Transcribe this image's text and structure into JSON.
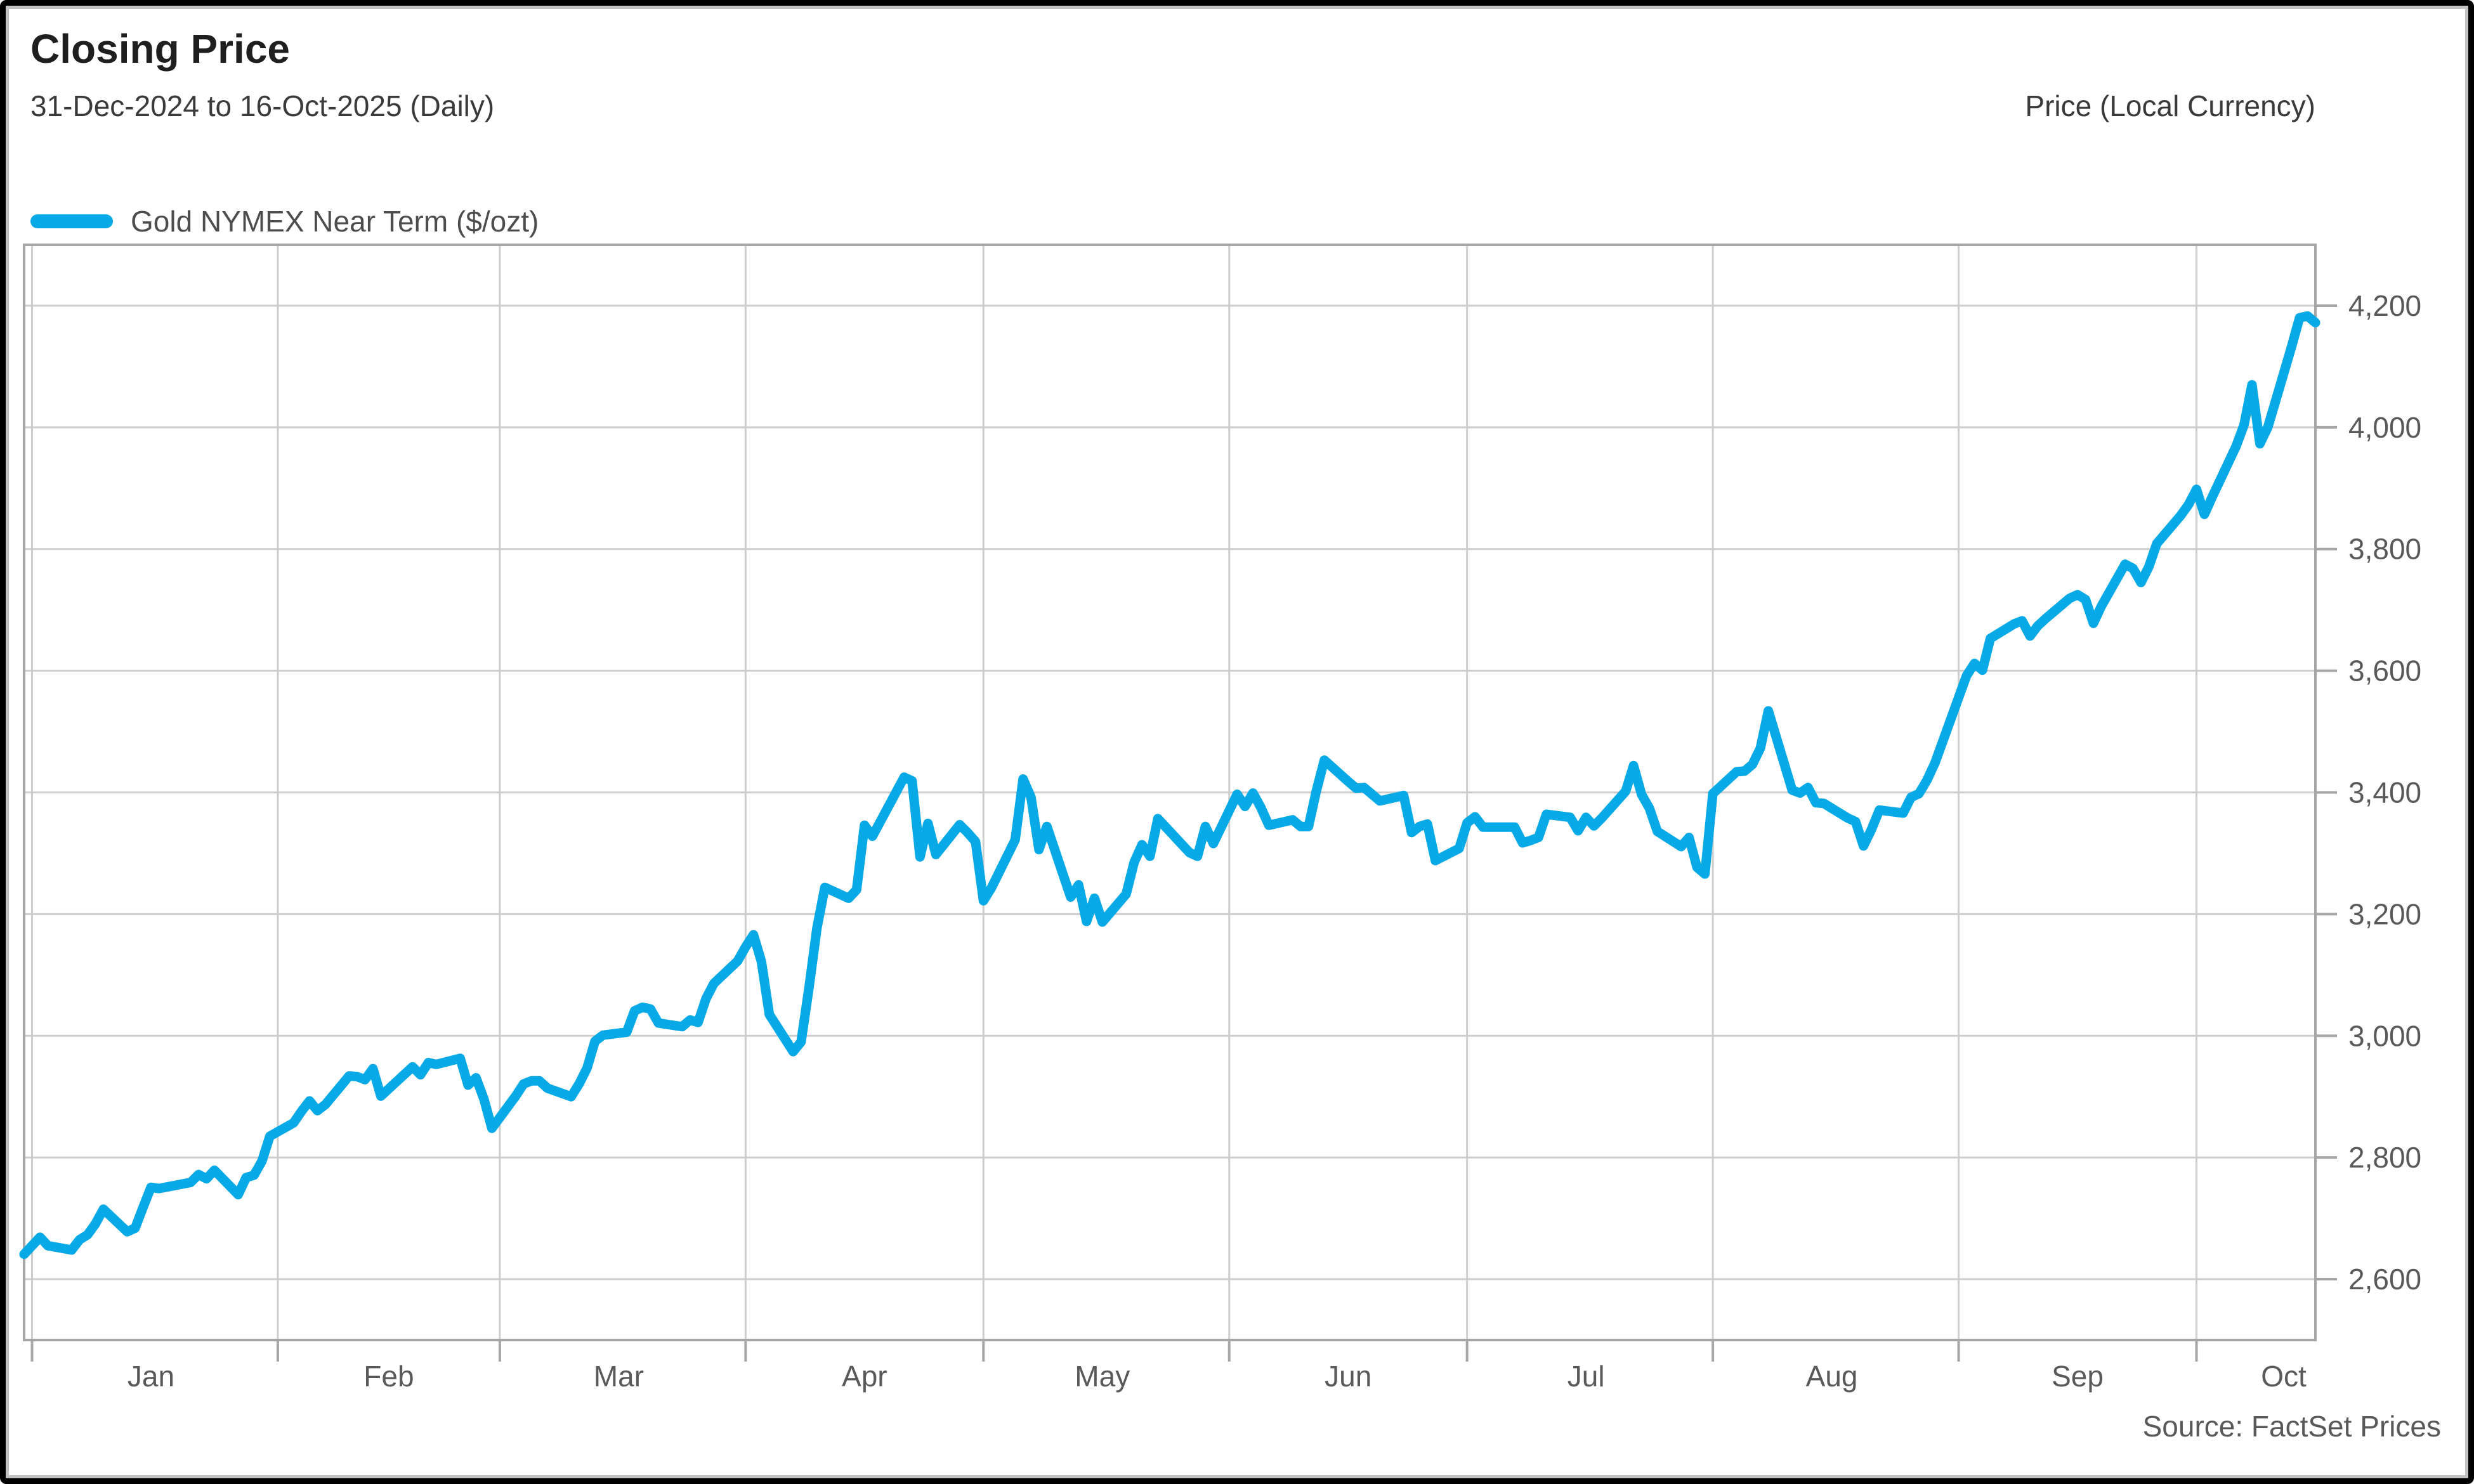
{
  "header": {
    "title": "Closing Price",
    "subtitle": "31-Dec-2024 to 16-Oct-2025 (Daily)",
    "right_label": "Price (Local Currency)"
  },
  "legend": {
    "series_label": "Gold NYMEX Near Term ($/ozt)",
    "swatch_color": "#07a9e6"
  },
  "source": "Source: FactSet Prices",
  "colors": {
    "line": "#07a9e6",
    "gridline": "#cdcdcd",
    "frame": "#a6a6a6",
    "tick": "#a6a6a6",
    "tick_label": "#595959",
    "month_label": "#595959",
    "title": "#1f1f1f",
    "subtitle": "#3a3a3a",
    "legend_text": "#4d4d4d",
    "source_text": "#595959",
    "outer_border": "#000000",
    "inner_border": "#c2c2c2"
  },
  "chart_data": {
    "type": "line",
    "title": "Closing Price",
    "subtitle": "31-Dec-2024 to 16-Oct-2025 (Daily)",
    "legend_position": "top-left",
    "grid": true,
    "y_axis": {
      "label": "Price (Local Currency)",
      "side": "right",
      "min": 2500,
      "max": 4300,
      "tick_values": [
        2600,
        2800,
        3000,
        3200,
        3400,
        3600,
        3800,
        4000,
        4200
      ],
      "tick_labels": [
        "2,600",
        "2,800",
        "3,000",
        "3,200",
        "3,400",
        "3,600",
        "3,800",
        "4,000",
        "4,200"
      ]
    },
    "x_axis": {
      "start_date": "31-Dec-2024",
      "end_date": "16-Oct-2025",
      "frequency": "Daily",
      "unit": "calendar-day offset from 31-Dec-2024",
      "total_days": 289,
      "months": [
        {
          "label": "Jan",
          "grid_day": 1,
          "label_day": 16
        },
        {
          "label": "Feb",
          "grid_day": 32,
          "label_day": 46
        },
        {
          "label": "Mar",
          "grid_day": 60,
          "label_day": 75
        },
        {
          "label": "Apr",
          "grid_day": 91,
          "label_day": 106
        },
        {
          "label": "May",
          "grid_day": 121,
          "label_day": 136
        },
        {
          "label": "Jun",
          "grid_day": 152,
          "label_day": 167
        },
        {
          "label": "Jul",
          "grid_day": 182,
          "label_day": 197
        },
        {
          "label": "Aug",
          "grid_day": 213,
          "label_day": 228
        },
        {
          "label": "Sep",
          "grid_day": 244,
          "label_day": 259
        },
        {
          "label": "Oct",
          "grid_day": 274,
          "label_day": 285
        }
      ]
    },
    "series": [
      {
        "name": "Gold NYMEX Near Term ($/ozt)",
        "color": "#07a9e6",
        "points": [
          [
            0,
            2641
          ],
          [
            2,
            2669
          ],
          [
            3,
            2655
          ],
          [
            6,
            2648
          ],
          [
            7,
            2665
          ],
          [
            8,
            2673
          ],
          [
            9,
            2691
          ],
          [
            10,
            2715
          ],
          [
            13,
            2678
          ],
          [
            14,
            2684
          ],
          [
            15,
            2718
          ],
          [
            16,
            2751
          ],
          [
            17,
            2749
          ],
          [
            21,
            2759
          ],
          [
            22,
            2772
          ],
          [
            23,
            2765
          ],
          [
            24,
            2779
          ],
          [
            27,
            2739
          ],
          [
            28,
            2767
          ],
          [
            29,
            2771
          ],
          [
            30,
            2794
          ],
          [
            31,
            2835
          ],
          [
            34,
            2857
          ],
          [
            35,
            2876
          ],
          [
            36,
            2893
          ],
          [
            37,
            2877
          ],
          [
            38,
            2887
          ],
          [
            41,
            2934
          ],
          [
            42,
            2933
          ],
          [
            43,
            2928
          ],
          [
            44,
            2946
          ],
          [
            45,
            2901
          ],
          [
            49,
            2949
          ],
          [
            50,
            2936
          ],
          [
            51,
            2956
          ],
          [
            52,
            2953
          ],
          [
            55,
            2963
          ],
          [
            56,
            2919
          ],
          [
            57,
            2931
          ],
          [
            58,
            2896
          ],
          [
            59,
            2848
          ],
          [
            62,
            2901
          ],
          [
            63,
            2921
          ],
          [
            64,
            2926
          ],
          [
            65,
            2926
          ],
          [
            66,
            2914
          ],
          [
            69,
            2900
          ],
          [
            70,
            2921
          ],
          [
            71,
            2947
          ],
          [
            72,
            2991
          ],
          [
            73,
            3001
          ],
          [
            76,
            3006
          ],
          [
            77,
            3041
          ],
          [
            78,
            3047
          ],
          [
            79,
            3044
          ],
          [
            80,
            3021
          ],
          [
            83,
            3015
          ],
          [
            84,
            3026
          ],
          [
            85,
            3022
          ],
          [
            86,
            3061
          ],
          [
            87,
            3086
          ],
          [
            90,
            3123
          ],
          [
            91,
            3146
          ],
          [
            92,
            3166
          ],
          [
            93,
            3122
          ],
          [
            94,
            3035
          ],
          [
            97,
            2974
          ],
          [
            98,
            2990
          ],
          [
            99,
            3079
          ],
          [
            100,
            3177
          ],
          [
            101,
            3244
          ],
          [
            104,
            3226
          ],
          [
            105,
            3240
          ],
          [
            106,
            3346
          ],
          [
            107,
            3328
          ],
          [
            111,
            3425
          ],
          [
            112,
            3419
          ],
          [
            113,
            3294
          ],
          [
            114,
            3349
          ],
          [
            115,
            3298
          ],
          [
            118,
            3347
          ],
          [
            119,
            3334
          ],
          [
            120,
            3319
          ],
          [
            121,
            3222
          ],
          [
            122,
            3243
          ],
          [
            125,
            3322
          ],
          [
            126,
            3422
          ],
          [
            127,
            3392
          ],
          [
            128,
            3306
          ],
          [
            129,
            3344
          ],
          [
            132,
            3228
          ],
          [
            133,
            3248
          ],
          [
            134,
            3188
          ],
          [
            135,
            3226
          ],
          [
            136,
            3187
          ],
          [
            139,
            3233
          ],
          [
            140,
            3285
          ],
          [
            141,
            3314
          ],
          [
            142,
            3295
          ],
          [
            143,
            3357
          ],
          [
            147,
            3301
          ],
          [
            148,
            3295
          ],
          [
            149,
            3344
          ],
          [
            150,
            3316
          ],
          [
            153,
            3397
          ],
          [
            154,
            3377
          ],
          [
            155,
            3399
          ],
          [
            156,
            3375
          ],
          [
            157,
            3346
          ],
          [
            160,
            3355
          ],
          [
            161,
            3344
          ],
          [
            162,
            3344
          ],
          [
            163,
            3403
          ],
          [
            164,
            3453
          ],
          [
            167,
            3418
          ],
          [
            168,
            3407
          ],
          [
            169,
            3408
          ],
          [
            171,
            3386
          ],
          [
            174,
            3395
          ],
          [
            175,
            3334
          ],
          [
            176,
            3344
          ],
          [
            177,
            3348
          ],
          [
            178,
            3288
          ],
          [
            181,
            3308
          ],
          [
            182,
            3350
          ],
          [
            183,
            3360
          ],
          [
            184,
            3343
          ],
          [
            188,
            3343
          ],
          [
            189,
            3317
          ],
          [
            190,
            3321
          ],
          [
            191,
            3326
          ],
          [
            192,
            3364
          ],
          [
            195,
            3359
          ],
          [
            196,
            3337
          ],
          [
            197,
            3359
          ],
          [
            198,
            3345
          ],
          [
            199,
            3358
          ],
          [
            202,
            3402
          ],
          [
            203,
            3444
          ],
          [
            204,
            3397
          ],
          [
            205,
            3374
          ],
          [
            206,
            3336
          ],
          [
            209,
            3311
          ],
          [
            210,
            3326
          ],
          [
            211,
            3277
          ],
          [
            212,
            3266
          ],
          [
            213,
            3398
          ],
          [
            216,
            3434
          ],
          [
            217,
            3435
          ],
          [
            218,
            3446
          ],
          [
            219,
            3473
          ],
          [
            220,
            3534
          ],
          [
            223,
            3404
          ],
          [
            224,
            3399
          ],
          [
            225,
            3408
          ],
          [
            226,
            3383
          ],
          [
            227,
            3382
          ],
          [
            230,
            3358
          ],
          [
            231,
            3352
          ],
          [
            232,
            3312
          ],
          [
            233,
            3339
          ],
          [
            234,
            3371
          ],
          [
            237,
            3366
          ],
          [
            238,
            3392
          ],
          [
            239,
            3398
          ],
          [
            240,
            3420
          ],
          [
            241,
            3448
          ],
          [
            245,
            3592
          ],
          [
            246,
            3612
          ],
          [
            247,
            3601
          ],
          [
            248,
            3653
          ],
          [
            251,
            3677
          ],
          [
            252,
            3682
          ],
          [
            253,
            3657
          ],
          [
            254,
            3674
          ],
          [
            255,
            3686
          ],
          [
            258,
            3719
          ],
          [
            259,
            3725
          ],
          [
            260,
            3717
          ],
          [
            261,
            3678
          ],
          [
            262,
            3706
          ],
          [
            265,
            3775
          ],
          [
            266,
            3768
          ],
          [
            267,
            3745
          ],
          [
            268,
            3771
          ],
          [
            269,
            3809
          ],
          [
            272,
            3855
          ],
          [
            273,
            3873
          ],
          [
            274,
            3898
          ],
          [
            275,
            3857
          ],
          [
            276,
            3886
          ],
          [
            279,
            3969
          ],
          [
            280,
            4004
          ],
          [
            281,
            4070
          ],
          [
            282,
            3973
          ],
          [
            283,
            4000
          ],
          [
            286,
            4133
          ],
          [
            287,
            4180
          ],
          [
            288,
            4183
          ],
          [
            289,
            4172
          ]
        ]
      }
    ]
  }
}
